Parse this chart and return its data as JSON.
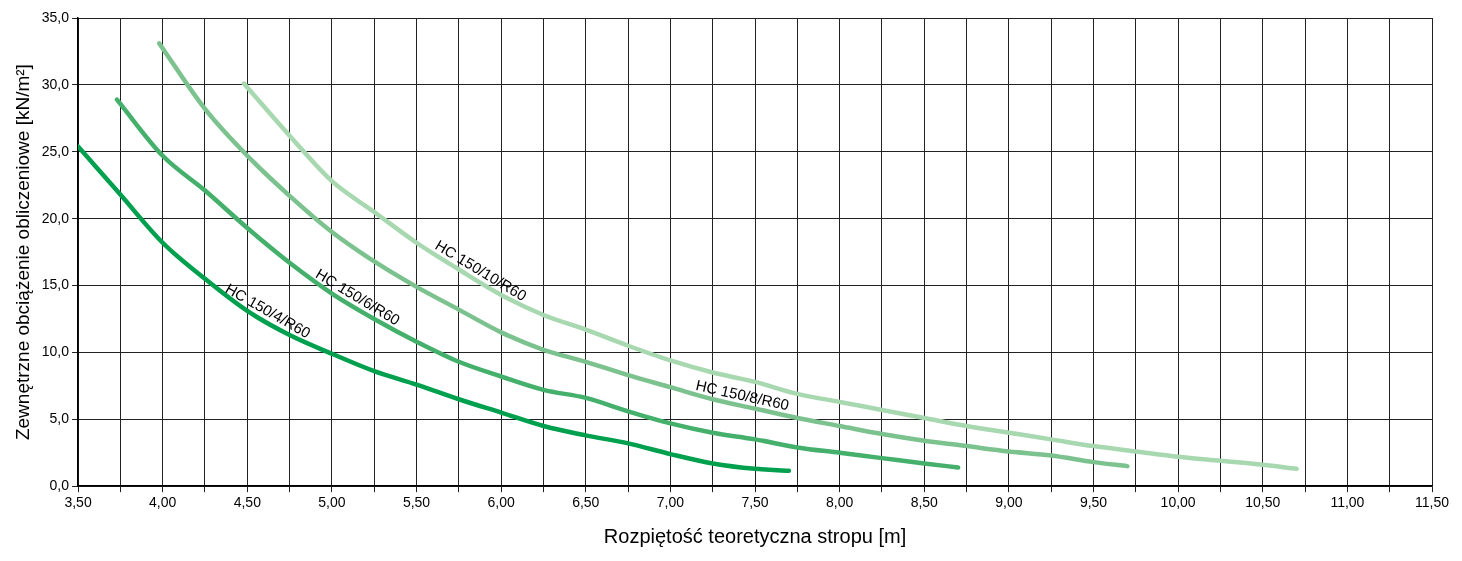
{
  "chart_data": {
    "type": "line",
    "xlabel": "Rozpiętość teoretyczna stropu [m]",
    "ylabel": "Zewnętrzne obciążenie obliczeniowe [kN/m²]",
    "xlim": [
      3.5,
      11.5
    ],
    "xticks": [
      {
        "value": 3.5,
        "label": "3,50"
      },
      {
        "value": 3.75,
        "label": null
      },
      {
        "value": 4,
        "label": "4,00"
      },
      {
        "value": 4.25,
        "label": null
      },
      {
        "value": 4.5,
        "label": "4,50"
      },
      {
        "value": 4.75,
        "label": null
      },
      {
        "value": 5,
        "label": "5,00"
      },
      {
        "value": 5.25,
        "label": null
      },
      {
        "value": 5.5,
        "label": "5,50"
      },
      {
        "value": 5.75,
        "label": null
      },
      {
        "value": 6,
        "label": "6,00"
      },
      {
        "value": 6.25,
        "label": null
      },
      {
        "value": 6.5,
        "label": "6,50"
      },
      {
        "value": 6.75,
        "label": null
      },
      {
        "value": 7,
        "label": "7,00"
      },
      {
        "value": 7.25,
        "label": null
      },
      {
        "value": 7.5,
        "label": "7,50"
      },
      {
        "value": 7.75,
        "label": null
      },
      {
        "value": 8,
        "label": "8,00"
      },
      {
        "value": 8.25,
        "label": null
      },
      {
        "value": 8.5,
        "label": "8,50"
      },
      {
        "value": 8.75,
        "label": null
      },
      {
        "value": 9,
        "label": "9,00"
      },
      {
        "value": 9.25,
        "label": null
      },
      {
        "value": 9.5,
        "label": "9,50"
      },
      {
        "value": 9.75,
        "label": null
      },
      {
        "value": 10,
        "label": "10,00"
      },
      {
        "value": 10.25,
        "label": null
      },
      {
        "value": 10.5,
        "label": "10,50"
      },
      {
        "value": 10.75,
        "label": null
      },
      {
        "value": 11,
        "label": "11,00"
      },
      {
        "value": 11.25,
        "label": null
      },
      {
        "value": 11.5,
        "label": "11,50"
      }
    ],
    "ylim": [
      0,
      35
    ],
    "yticks": [
      {
        "value": 0,
        "label": "0,0"
      },
      {
        "value": 5,
        "label": "5,0"
      },
      {
        "value": 10,
        "label": "10,0"
      },
      {
        "value": 15,
        "label": "15,0"
      },
      {
        "value": 20,
        "label": "20,0"
      },
      {
        "value": 25,
        "label": "25,0"
      },
      {
        "value": 30,
        "label": "30,0"
      },
      {
        "value": 35,
        "label": "35,0"
      }
    ],
    "grid": true,
    "legend": false,
    "marker": "none",
    "line_style": "solid",
    "series": [
      {
        "name": "HC 150/4/R60",
        "color": "#00a04f",
        "x": [
          3.5,
          3.75,
          4,
          4.25,
          4.5,
          4.75,
          5,
          5.25,
          5.5,
          5.75,
          6,
          6.25,
          6.5,
          6.75,
          7,
          7.25,
          7.5,
          7.7
        ],
        "values": [
          25.4,
          21.8,
          18.2,
          15.5,
          13.1,
          11.3,
          9.9,
          8.6,
          7.6,
          6.5,
          5.5,
          4.5,
          3.8,
          3.2,
          2.4,
          1.7,
          1.3,
          1.15
        ]
      },
      {
        "name": "HC 150/6/R60",
        "color": "#45b06c",
        "x": [
          3.73,
          4,
          4.25,
          4.5,
          4.75,
          5,
          5.25,
          5.5,
          5.75,
          6,
          6.25,
          6.5,
          6.75,
          7,
          7.25,
          7.5,
          7.75,
          8,
          8.25,
          8.5,
          8.7
        ],
        "values": [
          28.9,
          24.7,
          22.1,
          19.3,
          16.7,
          14.4,
          12.5,
          10.8,
          9.3,
          8.2,
          7.2,
          6.6,
          5.6,
          4.7,
          4.0,
          3.5,
          2.9,
          2.5,
          2.1,
          1.7,
          1.4
        ]
      },
      {
        "name": "HC 150/8/R60",
        "color": "#7cc28e",
        "x": [
          3.98,
          4.25,
          4.5,
          4.75,
          5,
          5.25,
          5.5,
          5.75,
          6,
          6.25,
          6.5,
          6.75,
          7,
          7.25,
          7.5,
          7.75,
          8,
          8.25,
          8.5,
          8.75,
          9,
          9.25,
          9.5,
          9.7
        ],
        "values": [
          33.1,
          28.2,
          24.7,
          21.7,
          19.0,
          16.8,
          14.9,
          13.2,
          11.5,
          10.2,
          9.3,
          8.3,
          7.4,
          6.5,
          5.8,
          5.1,
          4.5,
          3.9,
          3.4,
          3.0,
          2.6,
          2.3,
          1.8,
          1.5
        ]
      },
      {
        "name": "HC 150/10/R60",
        "color": "#a8d8b0",
        "x": [
          4.48,
          4.75,
          5,
          5.25,
          5.5,
          5.75,
          6,
          6.25,
          6.5,
          6.75,
          7,
          7.25,
          7.5,
          7.75,
          8,
          8.25,
          8.5,
          8.75,
          9,
          9.25,
          9.5,
          9.75,
          10,
          10.25,
          10.5,
          10.7
        ],
        "values": [
          30.1,
          26.2,
          22.8,
          20.5,
          18.2,
          16.2,
          14.3,
          12.8,
          11.7,
          10.5,
          9.4,
          8.5,
          7.8,
          6.9,
          6.3,
          5.7,
          5.1,
          4.5,
          4.0,
          3.5,
          3.0,
          2.6,
          2.2,
          1.9,
          1.6,
          1.3
        ]
      }
    ]
  }
}
